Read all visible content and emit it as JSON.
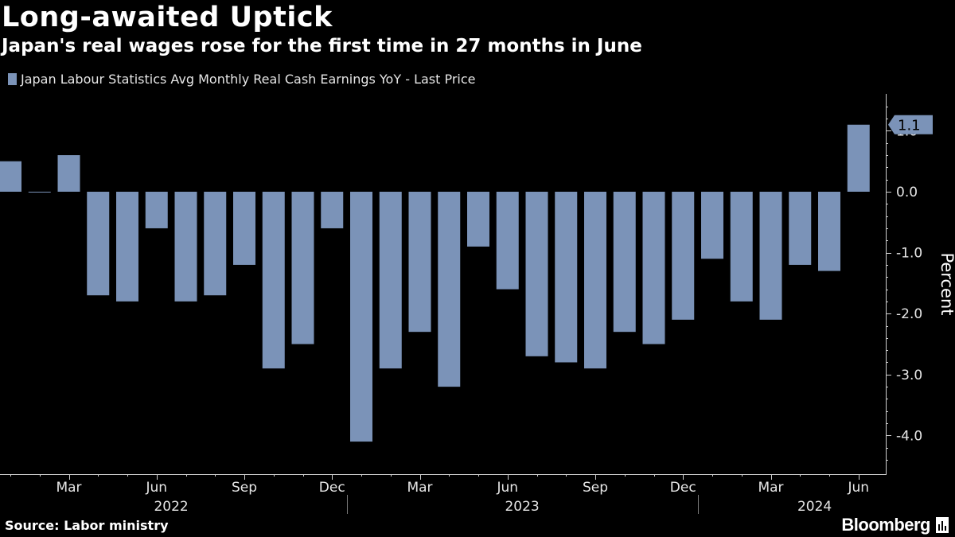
{
  "header": {
    "title": "Long-awaited Uptick",
    "subtitle": "Japan's real wages rose for the first time in 27 months in June"
  },
  "legend": {
    "label": "Japan Labour Statistics Avg Monthly Real Cash Earnings YoY - Last Price"
  },
  "footer": {
    "source": "Source: Labor ministry",
    "brand": "Bloomberg"
  },
  "colors": {
    "background": "#000000",
    "bar": "#7b93b8",
    "text": "#ffffff",
    "axis": "#d0d0d0"
  },
  "chart_data": {
    "type": "bar",
    "categories": [
      "Jan 2022",
      "Feb 2022",
      "Mar 2022",
      "Apr 2022",
      "May 2022",
      "Jun 2022",
      "Jul 2022",
      "Aug 2022",
      "Sep 2022",
      "Oct 2022",
      "Nov 2022",
      "Dec 2022",
      "Jan 2023",
      "Feb 2023",
      "Mar 2023",
      "Apr 2023",
      "May 2023",
      "Jun 2023",
      "Jul 2023",
      "Aug 2023",
      "Sep 2023",
      "Oct 2023",
      "Nov 2023",
      "Dec 2023",
      "Jan 2024",
      "Feb 2024",
      "Mar 2024",
      "Apr 2024",
      "May 2024",
      "Jun 2024"
    ],
    "values": [
      0.5,
      0.0,
      0.6,
      -1.7,
      -1.8,
      -0.6,
      -1.8,
      -1.7,
      -1.2,
      -2.9,
      -2.5,
      -0.6,
      -4.1,
      -2.9,
      -2.3,
      -3.2,
      -0.9,
      -1.6,
      -2.7,
      -2.8,
      -2.9,
      -2.3,
      -2.5,
      -2.1,
      -1.1,
      -1.8,
      -2.1,
      -1.2,
      -1.3,
      1.1
    ],
    "month_ticks": [
      "Mar",
      "Jun",
      "Sep",
      "Dec",
      "Mar",
      "Jun",
      "Sep",
      "Dec",
      "Mar",
      "Jun"
    ],
    "month_tick_indices": [
      2,
      5,
      8,
      11,
      14,
      17,
      20,
      23,
      26,
      29
    ],
    "years": [
      "2022",
      "2023",
      "2024"
    ],
    "year_center_indices": [
      5.5,
      17.5,
      27.5
    ],
    "year_separator_indices": [
      11.5,
      23.5
    ],
    "y_ticks": [
      "1.0",
      "0.0",
      "-1.0",
      "-2.0",
      "-3.0",
      "-4.0"
    ],
    "y_tick_values": [
      1.0,
      0.0,
      -1.0,
      -2.0,
      -3.0,
      -4.0
    ],
    "ylim": [
      -4.5,
      1.6
    ],
    "ylabel": "Percent",
    "last_value_label": "1.1",
    "last_value": 1.1
  }
}
